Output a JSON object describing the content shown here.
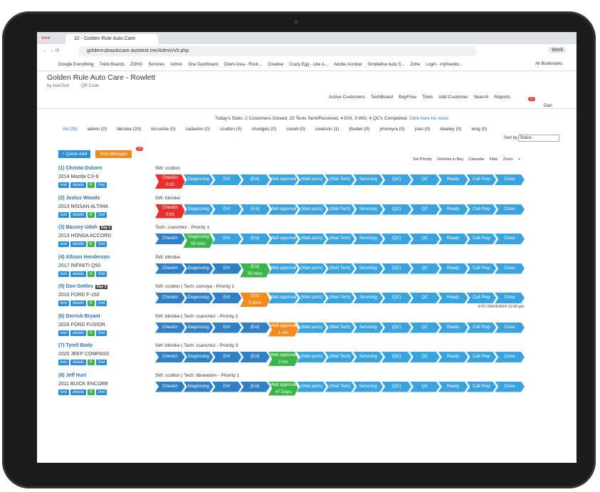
{
  "browser": {
    "tab_title": "32 - Golden Rule Auto Care",
    "url": "goldenruleautocare.autotext.me/Admin/v5.php",
    "bookmarks": [
      "Google Everything",
      "Trello Boards",
      "ZOHO",
      "Services",
      "Admin",
      "One Dashboard",
      "Client Area - Rock...",
      "Creative",
      "Crazy Egg - Like A...",
      "Adobe Acrobat",
      "Simpleline Auto S...",
      "Zohe",
      "Login - myfreedor..."
    ],
    "all_bookmarks": "All Bookmarks",
    "profile": "Work"
  },
  "header": {
    "title": "Golden Rule Auto Care - Rowlett",
    "by": "by AutoText",
    "qr": "QR Code",
    "nav": [
      "Active Customers",
      "TechBoard",
      "BayFlow",
      "Tools",
      "Add Customer",
      "Search",
      "Reports"
    ],
    "user": "Dan",
    "badge": "12"
  },
  "stats": {
    "text": "Today's Stats: 2 Customers Closed, 23 Texts Sent/Received, 4 DVI, 3 WO, 4 QC's Completed.",
    "link": "Click here for more."
  },
  "filters": [
    "All (29)",
    "admin (0)",
    "bbriske (20)",
    "bcrushie (0)",
    "cadamin (0)",
    "ccotton (5)",
    "chodges (0)",
    "conell (0)",
    "cwatson (1)",
    "jfoutler (0)",
    "jmoreyra (0)",
    "jravi (0)",
    "kbailey (0)",
    "leng (0)"
  ],
  "sort": {
    "label": "Sort by",
    "value": "Status"
  },
  "buttons": {
    "quick_add": "+ Quick Add",
    "text_manager": "Text Manager",
    "badge": "10"
  },
  "toolbar": [
    "Set Priority",
    "Vehicles in Bay",
    "Calendar",
    "Filter",
    "Zoom",
    "+"
  ],
  "row_buttons": [
    "text",
    "details",
    "R",
    "2nd"
  ],
  "stages": [
    "Checkin",
    "Diagnosing",
    "DVI",
    "(Est)",
    "Wait approval",
    "(Wait parts)",
    "(Wait Tech)",
    "Servicing",
    "(QC)",
    "QC",
    "Ready",
    "Call Prep",
    "Close"
  ],
  "rows": [
    {
      "name": "(1) Christa Osborn",
      "vehicle": "2014 Mazda CX-9",
      "assign": "SW: ccotton",
      "stage": "Checkin",
      "color": "#e8312f",
      "timer": "0:03"
    },
    {
      "name": "(2) Justus Woods",
      "vehicle": "2013 NISSAN ALTIMA",
      "assign": "SW: bbriske",
      "stage": "Checkin",
      "color": "#e8312f",
      "timer": "0:03"
    },
    {
      "name": "(3) Bassey Udoh",
      "day": "Day 1",
      "vehicle": "2013 HONDA ACCORD",
      "assign": "Tech: csanchez - Priority 1",
      "stage": "Diagnosing",
      "color": "#3bb44a",
      "timer": "58 mins"
    },
    {
      "name": "(4) Allison Henderson",
      "vehicle": "2017 INFINITI Q50",
      "assign": "SW: bbriske",
      "stage": "(Est)",
      "color": "#3bb44a",
      "timer": "55 mins"
    },
    {
      "name": "(5) Don Settles",
      "day": "Day 3",
      "vehicle": "2010 FORD F-150",
      "assign": "SW: ccotton | Tech: ccmoya - Priority 1",
      "stage": "(Est)",
      "color": "#f28a1e",
      "timer": "5 mins",
      "note": "ETC 05/03/2024 12:00 pm"
    },
    {
      "name": "(6) Derrick Bryant",
      "vehicle": "2016 FORD FUSION",
      "assign": "SW: bbriske | Tech: csanchez - Priority 2",
      "stage": "Wait approval",
      "color": "#f28a1e",
      "timer": "1 min"
    },
    {
      "name": "(7) Tyrell Body",
      "vehicle": "2020 JEEP COMPASS",
      "assign": "SW: bbriske | Tech: csanchez - Priority 3",
      "stage": "Wait approval",
      "color": "#3bb44a",
      "timer": "2 hrs"
    },
    {
      "name": "(8) Jeff Hurt",
      "vehicle": "2011 BUICK ENCORE",
      "assign": "SW: ccotton | Tech: bbrandom - Priority 1",
      "stage": "Wait approval",
      "color": "#3bb44a",
      "timer": "47 Days"
    }
  ]
}
